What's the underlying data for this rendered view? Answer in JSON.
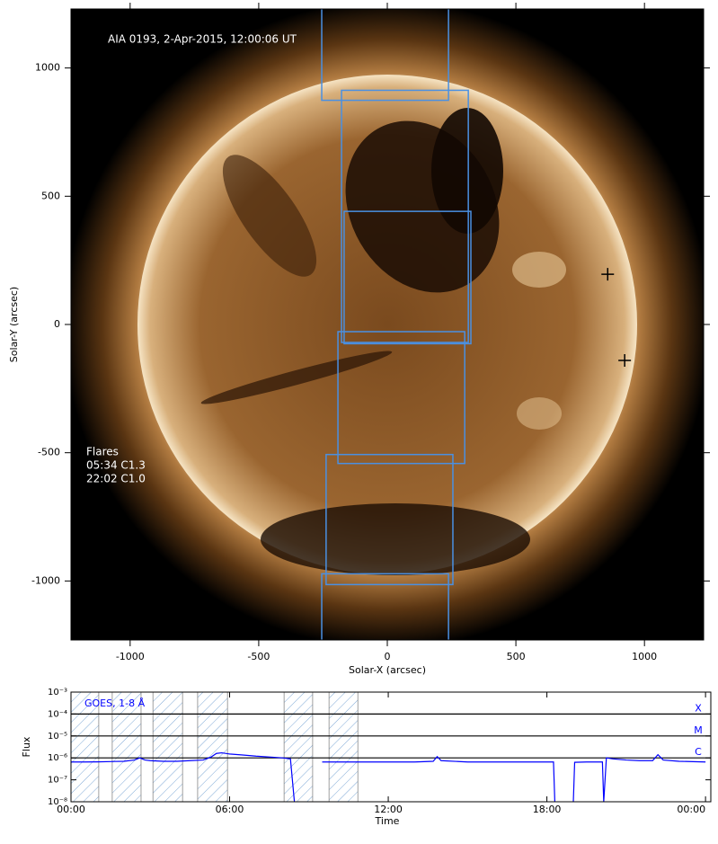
{
  "chart_data": [
    {
      "type": "image",
      "title": "AIA 0193, 2-Apr-2015, 12:00:06 UT",
      "annotations": [
        "Flares",
        "05:34 C1.3",
        "22:02 C1.0"
      ],
      "xlabel": "Solar-X (arcsec)",
      "ylabel": "Solar-Y (arcsec)",
      "xlim": [
        -1230,
        1230
      ],
      "ylim": [
        -1230,
        1230
      ],
      "xticks": [
        -1000,
        -500,
        0,
        500,
        1000
      ],
      "yticks": [
        -1000,
        -500,
        0,
        500,
        1000
      ],
      "box_color": "#4a90e2",
      "boxes": [
        {
          "x0": -255,
          "x1": 238,
          "y0": 874,
          "y1": 1300
        },
        {
          "x0": -178,
          "x1": 315,
          "y0": -70,
          "y1": 913
        },
        {
          "x0": -168,
          "x1": 325,
          "y0": -75,
          "y1": 441
        },
        {
          "x0": -192,
          "x1": 301,
          "y0": -542,
          "y1": -28
        },
        {
          "x0": -238,
          "x1": 255,
          "y0": -1014,
          "y1": -507
        },
        {
          "x0": -255,
          "x1": 238,
          "y0": -1300,
          "y1": -972
        }
      ],
      "markers": {
        "x": [
          857,
          923
        ],
        "y": [
          196,
          -140
        ]
      }
    },
    {
      "type": "line",
      "xlabel": "Time",
      "ylabel": "Flux",
      "log_y": true,
      "xlim": [
        0,
        24.2
      ],
      "ylim": [
        1e-08,
        0.001
      ],
      "xticks": [
        {
          "value": 0,
          "label": "00:00"
        },
        {
          "value": 6,
          "label": "06:00"
        },
        {
          "value": 12,
          "label": "12:00"
        },
        {
          "value": 18,
          "label": "18:00"
        },
        {
          "value": 24,
          "label": "00:00"
        }
      ],
      "yticks": [
        {
          "value": 1e-08,
          "label": "10⁻⁸"
        },
        {
          "value": 1e-07,
          "label": "10⁻⁷"
        },
        {
          "value": 1e-06,
          "label": "10⁻⁶"
        },
        {
          "value": 1e-05,
          "label": "10⁻⁵"
        },
        {
          "value": 0.0001,
          "label": "10⁻⁴"
        },
        {
          "value": 0.001,
          "label": "10⁻³"
        }
      ],
      "levels": {
        "values": [
          0.0001,
          1e-05,
          1e-06
        ],
        "labels": [
          "X",
          "M",
          "C"
        ]
      },
      "shaded_intervals": [
        [
          0,
          1.05
        ],
        [
          1.56,
          2.65
        ],
        [
          3.1,
          4.22
        ],
        [
          4.79,
          5.92
        ],
        [
          8.06,
          9.14
        ],
        [
          9.76,
          10.85
        ]
      ],
      "x": [
        0,
        0.5,
        1,
        1.5,
        2,
        2.4,
        2.6,
        2.8,
        3,
        3.5,
        4,
        4.5,
        5,
        5.3,
        5.5,
        5.7,
        6,
        6.5,
        7,
        7.5,
        8,
        8.3,
        8.45,
        9.0,
        9.5,
        10,
        11,
        12,
        13,
        13.7,
        13.85,
        14.0,
        15,
        16,
        17,
        18,
        18.25,
        18.3,
        18.7,
        19.0,
        19.05,
        19.5,
        20.1,
        20.15,
        20.25,
        20.5,
        21,
        21.5,
        22,
        22.2,
        22.4,
        23,
        24
      ],
      "series": [
        {
          "name": "GOES, 1-8 Å",
          "color": "#0000ff",
          "values": [
            6.5e-07,
            6.5e-07,
            6.6e-07,
            6.8e-07,
            7e-07,
            8e-07,
            1e-06,
            8e-07,
            7.5e-07,
            7e-07,
            7e-07,
            7.5e-07,
            8e-07,
            1.1e-06,
            1.6e-06,
            1.7e-06,
            1.5e-06,
            1.35e-06,
            1.2e-06,
            1.1e-06,
            1e-06,
            9e-07,
            1e-08,
            null,
            6.5e-07,
            6.5e-07,
            6.5e-07,
            6.5e-07,
            6.5e-07,
            7e-07,
            1.15e-06,
            7.5e-07,
            6.5e-07,
            6.5e-07,
            6.5e-07,
            6.5e-07,
            6.5e-07,
            1e-08,
            null,
            1e-08,
            6.3e-07,
            6.5e-07,
            6.5e-07,
            1e-08,
            1e-06,
            9e-07,
            8e-07,
            7.5e-07,
            7.5e-07,
            1.4e-06,
            8e-07,
            7e-07,
            6.5e-07
          ]
        }
      ]
    }
  ]
}
